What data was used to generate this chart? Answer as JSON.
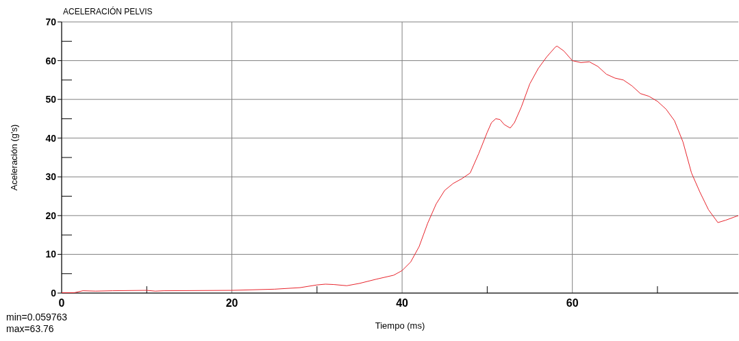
{
  "chart_data": {
    "type": "line",
    "title": "ACELERACIÓN PELVIS",
    "xlabel": "Tiempo (ms)",
    "ylabel": "Aceleración (g's)",
    "annotations": [
      "min=0.059763",
      "max=63.76"
    ],
    "xlim": [
      0,
      79.5
    ],
    "ylim": [
      0,
      70
    ],
    "xticks": [
      0,
      {
        "value": 10,
        "label": null
      },
      20,
      {
        "value": 30,
        "label": null
      },
      40,
      {
        "value": 50,
        "label": null
      },
      60,
      {
        "value": 70,
        "label": null
      }
    ],
    "yticks": [
      0,
      {
        "value": 5,
        "label": null
      },
      10,
      {
        "value": 15,
        "label": null
      },
      20,
      {
        "value": 25,
        "label": null
      },
      30,
      {
        "value": 35,
        "label": null
      },
      40,
      {
        "value": 45,
        "label": null
      },
      50,
      {
        "value": 55,
        "label": null
      },
      60,
      {
        "value": 65,
        "label": null
      },
      70
    ],
    "grid": true,
    "marker": "none",
    "line_style": "solid",
    "x": [
      0,
      1.5,
      2.5,
      4,
      6,
      10,
      11,
      12,
      20,
      25,
      28,
      30,
      31,
      32,
      33.5,
      35,
      37,
      39,
      40,
      41,
      42,
      43,
      44,
      45,
      46,
      47,
      48,
      49,
      50,
      50.5,
      51,
      51.5,
      52,
      52.7,
      53.2,
      54,
      55,
      56,
      57,
      58,
      58.2,
      59,
      60,
      61,
      62,
      63,
      64,
      65,
      66,
      67,
      68,
      69,
      70,
      71,
      72,
      73,
      74,
      75,
      76,
      77.1,
      78,
      79,
      79.5
    ],
    "series": [
      {
        "color": "#e8232b",
        "values": [
          0.1,
          0.1,
          0.6,
          0.5,
          0.6,
          0.7,
          0.5,
          0.6,
          0.7,
          1.0,
          1.4,
          2.1,
          2.3,
          2.2,
          1.9,
          2.5,
          3.6,
          4.6,
          5.8,
          8.0,
          12,
          18,
          23,
          26.5,
          28.3,
          29.5,
          31,
          36,
          41.5,
          44,
          45,
          44.8,
          43.5,
          42.6,
          44,
          48,
          54,
          58,
          61,
          63.5,
          63.76,
          62.5,
          60,
          59.5,
          59.7,
          58.5,
          56.5,
          55.5,
          55,
          53.5,
          51.5,
          50.8,
          49.5,
          47.5,
          44.5,
          39,
          31,
          26,
          21.5,
          18.2,
          18.8,
          19.6,
          20
        ]
      }
    ]
  }
}
